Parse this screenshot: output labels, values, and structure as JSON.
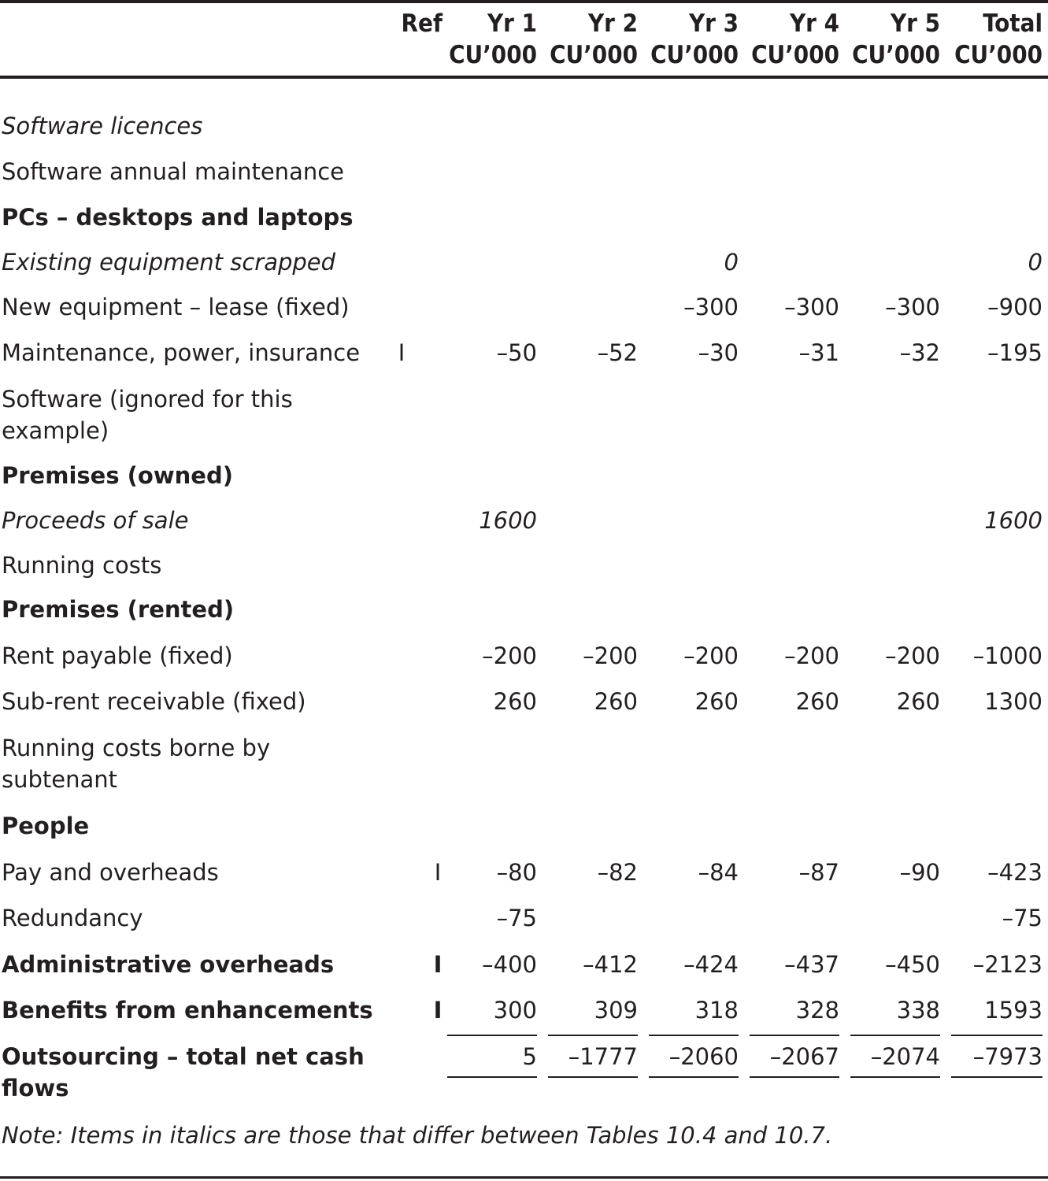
{
  "header": {
    "ref": "Ref",
    "columns": [
      {
        "top": "Yr 1",
        "bottom": "CU’000"
      },
      {
        "top": "Yr 2",
        "bottom": "CU’000"
      },
      {
        "top": "Yr 3",
        "bottom": "CU’000"
      },
      {
        "top": "Yr 4",
        "bottom": "CU’000"
      },
      {
        "top": "Yr 5",
        "bottom": "CU’000"
      },
      {
        "top": "Total",
        "bottom": "CU’000"
      }
    ]
  },
  "rows": [
    {
      "label": "Software licences",
      "ref": "",
      "values": [
        "",
        "",
        "",
        "",
        "",
        ""
      ]
    },
    {
      "label": "Software annual maintenance",
      "ref": "",
      "values": [
        "",
        "",
        "",
        "",
        "",
        ""
      ]
    },
    {
      "label": "PCs – desktops and laptops",
      "ref": "",
      "values": [
        "",
        "",
        "",
        "",
        "",
        ""
      ]
    },
    {
      "label": "Existing equipment scrapped",
      "ref": "",
      "values": [
        "",
        "",
        "0",
        "",
        "",
        "0"
      ]
    },
    {
      "label": "New equipment – lease (fixed)",
      "ref": "",
      "values": [
        "",
        "",
        "–300",
        "–300",
        "–300",
        "–900"
      ]
    },
    {
      "label": "Maintenance, power, insurance",
      "ref": "I",
      "values": [
        "–50",
        "–52",
        "–30",
        "–31",
        "–32",
        "–195"
      ]
    },
    {
      "label": "Software (ignored for this example)",
      "ref": "",
      "values": [
        "",
        "",
        "",
        "",
        "",
        ""
      ]
    },
    {
      "label": "Premises (owned)",
      "ref": "",
      "values": [
        "",
        "",
        "",
        "",
        "",
        ""
      ]
    },
    {
      "label": "Proceeds of sale",
      "ref": "",
      "values": [
        "1600",
        "",
        "",
        "",
        "",
        "1600"
      ]
    },
    {
      "label": "Running costs",
      "ref": "",
      "values": [
        "",
        "",
        "",
        "",
        "",
        ""
      ]
    },
    {
      "label": "Premises (rented)",
      "ref": "",
      "values": [
        "",
        "",
        "",
        "",
        "",
        ""
      ]
    },
    {
      "label": "Rent payable (fixed)",
      "ref": "",
      "values": [
        "–200",
        "–200",
        "–200",
        "–200",
        "–200",
        "–1000"
      ]
    },
    {
      "label": "Sub-rent receivable (fixed)",
      "ref": "",
      "values": [
        "260",
        "260",
        "260",
        "260",
        "260",
        "1300"
      ]
    },
    {
      "label": "Running costs borne by subtenant",
      "ref": "",
      "values": [
        "",
        "",
        "",
        "",
        "",
        ""
      ]
    },
    {
      "label": "People",
      "ref": "",
      "values": [
        "",
        "",
        "",
        "",
        "",
        ""
      ]
    },
    {
      "label": "Pay and overheads",
      "ref": "I",
      "values": [
        "–80",
        "–82",
        "–84",
        "–87",
        "–90",
        "–423"
      ]
    },
    {
      "label": "Redundancy",
      "ref": "",
      "values": [
        "–75",
        "",
        "",
        "",
        "",
        "–75"
      ]
    },
    {
      "label": "Administrative overheads",
      "ref": "I",
      "values": [
        "–400",
        "–412",
        "–424",
        "–437",
        "–450",
        "–2123"
      ]
    },
    {
      "label": "Benefits from enhancements",
      "ref": "I",
      "values": [
        "300",
        "309",
        "318",
        "328",
        "338",
        "1593"
      ]
    },
    {
      "label": "Outsourcing – total net cash flows",
      "ref": "",
      "values": [
        "5",
        "–1777",
        "–2060",
        "–2067",
        "–2074",
        "–7973"
      ]
    }
  ],
  "note": "Note: Items in italics are those that differ between Tables 10.4 and 10.7."
}
